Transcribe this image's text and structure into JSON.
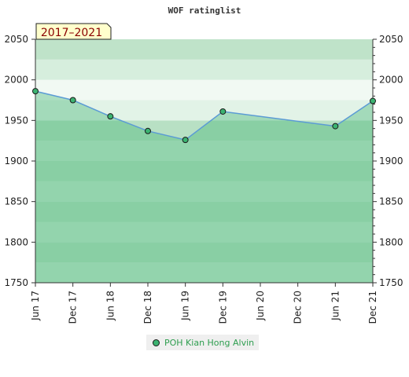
{
  "chart_data": {
    "type": "line",
    "title": "WOF ratinglist",
    "period_badge": "2017–2021",
    "x_ticks": [
      "Jun 17",
      "Dec 17",
      "Jun 18",
      "Dec 18",
      "Jun 19",
      "Dec 19",
      "Jun 20",
      "Dec 20",
      "Jun 21",
      "Dec 21"
    ],
    "y_ticks": [
      1750,
      1800,
      1850,
      1900,
      1950,
      2000,
      2050
    ],
    "ylim": [
      1750,
      2050
    ],
    "xlim": [
      "Jun 17",
      "Dec 21"
    ],
    "series": [
      {
        "name": "POH Kian Hong Alvin",
        "x": [
          "Jun 17",
          "Dec 17",
          "Jun 18",
          "Dec 18",
          "Jun 19",
          "Dec 19",
          "Jun 21",
          "Dec 21"
        ],
        "values": [
          1986,
          1975,
          1955,
          1937,
          1926,
          1961,
          1943,
          1974
        ]
      }
    ],
    "legend_position": "bottom-center",
    "colors": {
      "line": "#5b9bd5",
      "fill": "#3cb371",
      "marker": "#3cb371"
    }
  }
}
